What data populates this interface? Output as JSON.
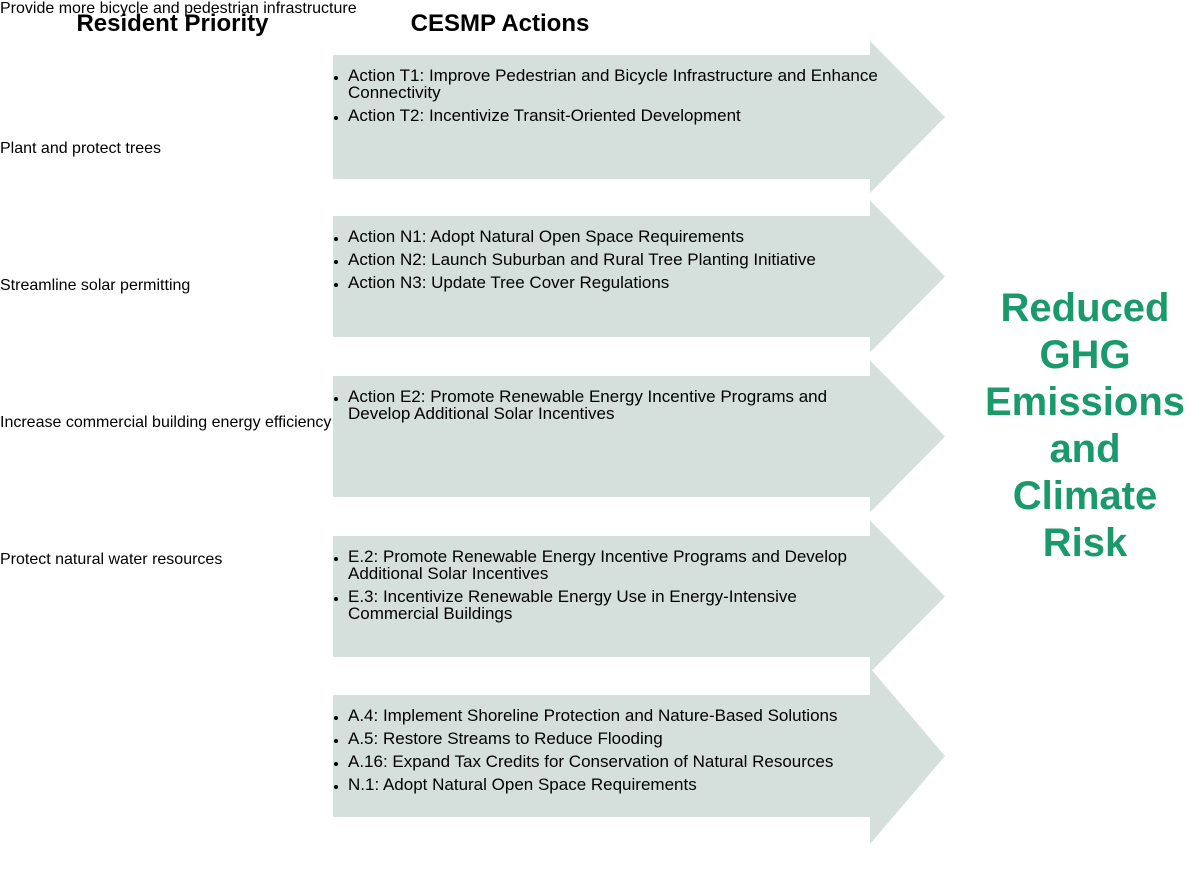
{
  "headers": {
    "priority": "Resident Priority",
    "actions": "CESMP Actions"
  },
  "rows": [
    {
      "priority": "Provide more bicycle and pedestrian infrastructure",
      "actions": [
        "Action T1: Improve Pedestrian and Bicycle Infrastructure and Enhance Connectivity",
        "Action T2: Incentivize Transit-Oriented Development"
      ]
    },
    {
      "priority": "Plant and protect trees",
      "actions": [
        "Action N1: Adopt Natural Open Space Requirements",
        "Action N2: Launch Suburban and Rural Tree Planting Initiative",
        "Action N3: Update Tree Cover Regulations"
      ]
    },
    {
      "priority": "Streamline solar permitting",
      "actions": [
        "Action E2: Promote Renewable Energy Incentive Programs and Develop Additional Solar Incentives"
      ]
    },
    {
      "priority": "Increase commercial building energy efficiency",
      "actions": [
        "E.2: Promote Renewable Energy Incentive Programs and Develop Additional Solar Incentives",
        "E.3: Incentivize Renewable Energy Use in Energy-Intensive Commercial Buildings"
      ]
    },
    {
      "priority": "Protect natural water resources",
      "actions": [
        "A.4: Implement Shoreline Protection and Nature-Based Solutions",
        "A.5: Restore Streams to Reduce Flooding",
        "A.16: Expand Tax Credits for Conservation of Natural Resources",
        "N.1: Adopt Natural Open Space Requirements"
      ]
    }
  ],
  "outcome": [
    "Reduced",
    "GHG",
    "Emissions",
    "and",
    "Climate",
    "Risk"
  ]
}
